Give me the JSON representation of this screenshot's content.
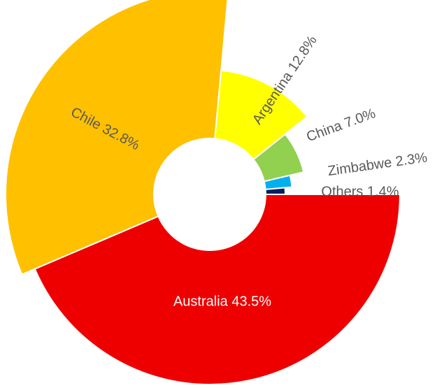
{
  "chart_data": {
    "type": "pie",
    "variant": "rose-donut",
    "title": "",
    "series": [
      {
        "label": "Australia 43.5%",
        "value": 43.5,
        "color": "#ee0000",
        "label_color": "#ffffff"
      },
      {
        "label": "Chile 32.8%",
        "value": 32.8,
        "color": "#ffc000",
        "label_color": "#595959"
      },
      {
        "label": "Argentina 12.8%",
        "value": 12.8,
        "color": "#ffff00",
        "label_color": "#595959"
      },
      {
        "label": "China 7.0%",
        "value": 7.0,
        "color": "#92d050",
        "label_color": "#595959"
      },
      {
        "label": "Zimbabwe 2.3%",
        "value": 2.3,
        "color": "#00b0f0",
        "label_color": "#595959"
      },
      {
        "label": "Others 1.4%",
        "value": 1.4,
        "color": "#002060",
        "label_color": "#595959"
      }
    ],
    "legend": "none",
    "grid": false
  }
}
